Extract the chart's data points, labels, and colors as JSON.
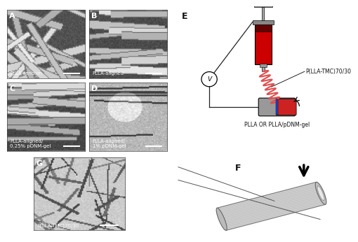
{
  "panel_A_label": "PLLA-random",
  "panel_B_label": "PLLA-aligned",
  "panel_C_label": "PLLA-aligned/\n0.25% pDNM-gel",
  "panel_D_label": "PLLA-aligned/\n1% pDNM-gel",
  "panel_G_label": "P(LLA-TMC)70/30",
  "scheme_label1": "P(LLA-TMC)70/30",
  "scheme_label2": "PLLA OR PLLA/pDNM-gel",
  "bg_color": "#ffffff",
  "syringe_red": "#cc0000",
  "coil_red": "#e05050",
  "collector_red": "#cc2222",
  "collector_blue": "#2244cc",
  "collector_gray": "#999999",
  "wire_color": "#222222",
  "text_color": "#111111",
  "label_fontsize": 5,
  "panel_label_fontsize": 8,
  "scheme_fontsize": 5.5
}
